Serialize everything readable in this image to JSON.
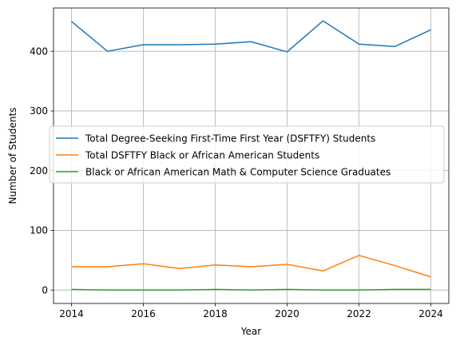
{
  "chart_data": {
    "type": "line",
    "title": "",
    "xlabel": "Year",
    "ylabel": "Number of Students",
    "x": [
      2014,
      2015,
      2016,
      2017,
      2018,
      2019,
      2020,
      2021,
      2022,
      2023,
      2024
    ],
    "xlim": [
      2013.5,
      2024.5
    ],
    "ylim": [
      -22.5,
      472.5
    ],
    "xticks": [
      2014,
      2016,
      2018,
      2020,
      2022,
      2024
    ],
    "yticks": [
      0,
      100,
      200,
      300,
      400
    ],
    "grid": true,
    "legend_position": "center-left",
    "series": [
      {
        "name": "Total Degree-Seeking First-Time First Year (DSFTFY) Students",
        "color": "#1f77b4",
        "values": [
          450,
          400,
          411,
          411,
          412,
          416,
          399,
          451,
          412,
          408,
          436
        ]
      },
      {
        "name": "Total DSFTFY Black or African American Students",
        "color": "#ff7f0e",
        "values": [
          39,
          39,
          44,
          36,
          42,
          39,
          43,
          32,
          58,
          41,
          22
        ]
      },
      {
        "name": "Black or African American Math & Computer Science Graduates",
        "color": "#2ca02c",
        "values": [
          1,
          0,
          0,
          0,
          1,
          0,
          1,
          0,
          0,
          1,
          1
        ]
      }
    ]
  }
}
